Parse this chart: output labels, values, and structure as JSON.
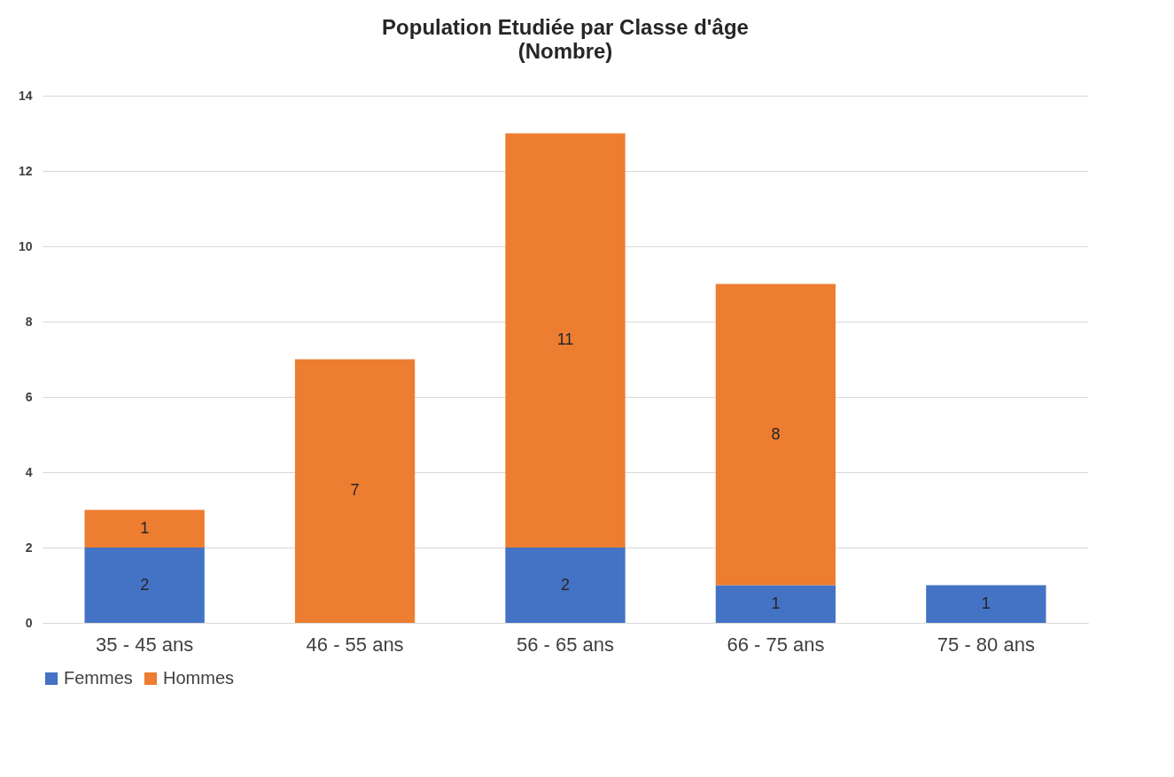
{
  "chart_data": {
    "type": "bar",
    "title": "Population Etudiée par Classe d'âge",
    "subtitle": "(Nombre)",
    "categories": [
      "35 - 45 ans",
      "46 - 55 ans",
      "56 - 65 ans",
      "66 - 75 ans",
      "75 - 80 ans"
    ],
    "stacked": true,
    "series": [
      {
        "name": "Femmes",
        "color": "#4472c4",
        "values": [
          2,
          null,
          2,
          1,
          1
        ]
      },
      {
        "name": "Hommes",
        "color": "#ed7d31",
        "values": [
          1,
          7,
          11,
          8,
          null
        ]
      }
    ],
    "ylim": [
      0,
      14
    ],
    "yticks": [
      0,
      2,
      4,
      6,
      8,
      10,
      12,
      14
    ],
    "grid": "y",
    "legend": "bottom",
    "data_labels": true
  }
}
